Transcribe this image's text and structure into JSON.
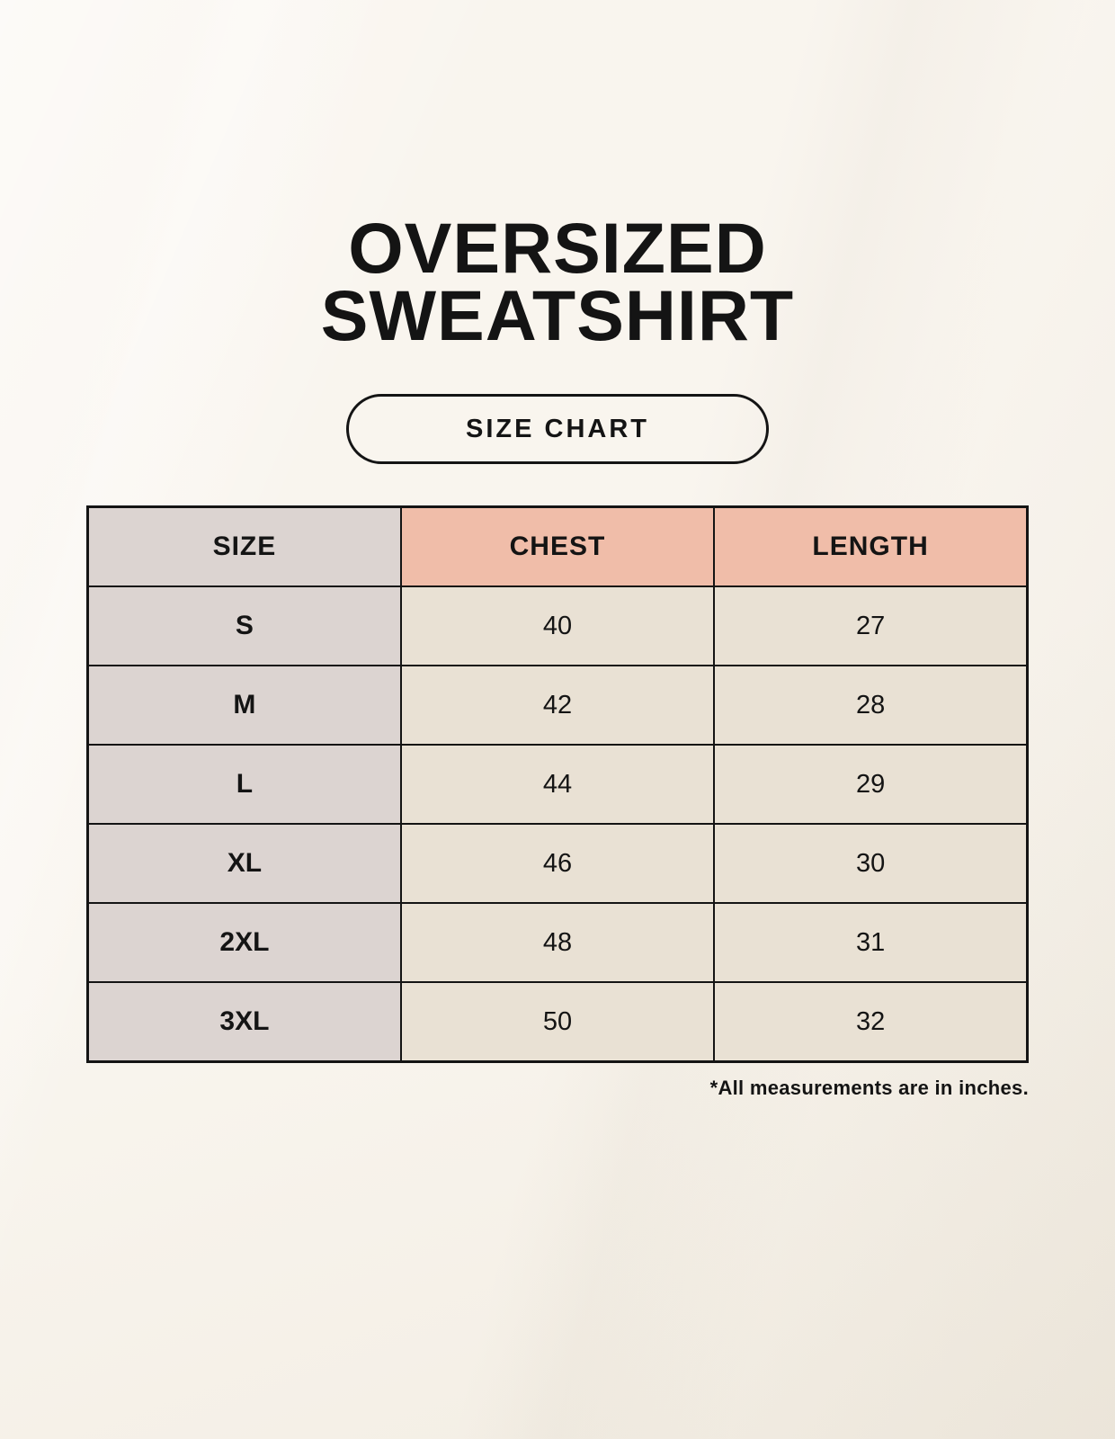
{
  "poster": {
    "title": {
      "line1": "OVERSIZED",
      "line2": "SWEATSHIRT"
    },
    "badge": {
      "label": "SIZE CHART"
    },
    "footnote": "*All measurements are in inches.",
    "colors": {
      "background": "#f7f2e9",
      "header_accent": "#f0bda9",
      "size_column": "#dcd4d1",
      "value_cell": "#e9e1d4",
      "border": "#141414",
      "text": "#141414"
    }
  },
  "size_chart": {
    "columns": [
      "SIZE",
      "CHEST",
      "LENGTH"
    ],
    "rows": [
      {
        "size": "S",
        "chest": "40",
        "length": "27"
      },
      {
        "size": "M",
        "chest": "42",
        "length": "28"
      },
      {
        "size": "L",
        "chest": "44",
        "length": "29"
      },
      {
        "size": "XL",
        "chest": "46",
        "length": "30"
      },
      {
        "size": "2XL",
        "chest": "48",
        "length": "31"
      },
      {
        "size": "3XL",
        "chest": "50",
        "length": "32"
      }
    ]
  }
}
